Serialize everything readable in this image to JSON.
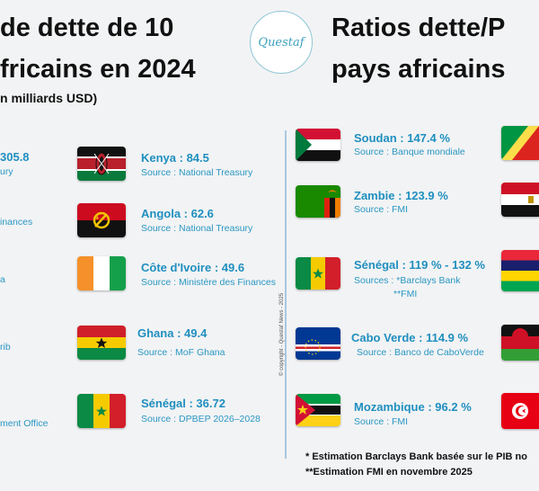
{
  "left": {
    "title_line1": "de dette de 10",
    "title_line2": "fricains en 2024",
    "subtitle": "n milliards USD)",
    "fragments": {
      "f1": "305.8",
      "f2": "ury",
      "f3": "inances",
      "f4": "a",
      "f5": "rib",
      "f6": "ment Office"
    },
    "items": [
      {
        "name": "Kenya : 84.5",
        "source": "Source : National Treasury",
        "flag": "kenya"
      },
      {
        "name": "Angola : 62.6",
        "source": "Source : National Treasury",
        "flag": "angola"
      },
      {
        "name": "Côte d'Ivoire : 49.6",
        "source": "Source : Ministère des Finances",
        "flag": "cote-divoire"
      },
      {
        "name": "Ghana : 49.4",
        "source": "Source : MoF Ghana",
        "flag": "ghana"
      },
      {
        "name": "Sénégal : 36.72",
        "source": "Source : DPBEP 2026–2028",
        "flag": "senegal"
      }
    ]
  },
  "logo": "Questaf",
  "copyright": "© copyright - Questaf News - 2025",
  "right": {
    "title_line1": "Ratios dette/P",
    "title_line2": "pays africains",
    "items": [
      {
        "name": "Soudan : 147.4 %",
        "source": "Source : Banque mondiale",
        "flag": "sudan"
      },
      {
        "name": "Zambie : 123.9 %",
        "source": "Source : FMI",
        "flag": "zambia"
      },
      {
        "name": "Sénégal : 119 % - 132 %",
        "source": "Sources : *Barclays Bank",
        "source2": "**FMI",
        "flag": "senegal"
      },
      {
        "name": "Cabo Verde : 114.9 %",
        "source": "Source : Banco de CaboVerde",
        "flag": "cabo-verde"
      },
      {
        "name": "Mozambique : 96.2 %",
        "source": "Source : FMI",
        "flag": "mozambique"
      }
    ],
    "partial_flags": [
      "congo-flag-icon",
      "egypt-flag-icon",
      "mauritius-flag-icon",
      "malawi-flag-icon",
      "tunisia-flag-icon"
    ],
    "note1": "*  Estimation Barclays Bank basée sur  le PIB no",
    "note2": "**Estimation FMI en novembre 2025"
  }
}
